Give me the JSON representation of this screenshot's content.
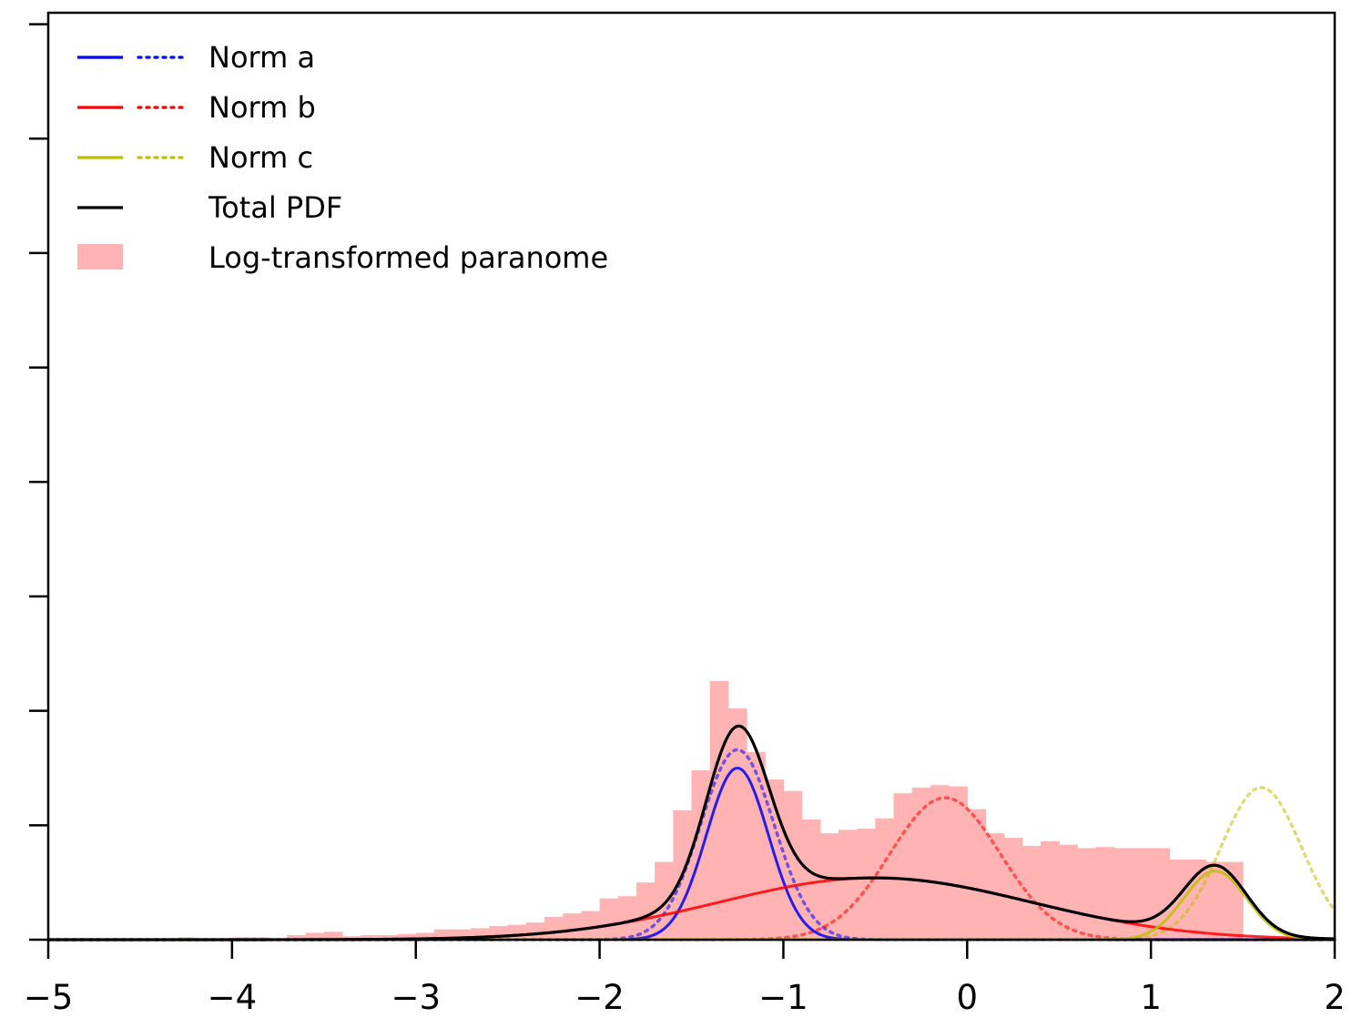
{
  "chart_data": {
    "type": "bar",
    "title": "",
    "xlabel": "",
    "ylabel": "",
    "xlim": [
      -5,
      2
    ],
    "ylim": [
      0,
      0.81
    ],
    "y_tick_labels_visible": false,
    "x_ticks": [
      -5,
      -4,
      -3,
      -2,
      -1,
      0,
      1,
      2
    ],
    "x_tick_labels": [
      "−5",
      "−4",
      "−3",
      "−2",
      "−1",
      "0",
      "1",
      "2"
    ],
    "y_ticks": [
      0,
      0.1,
      0.2,
      0.3,
      0.4,
      0.5,
      0.6,
      0.7,
      0.8
    ],
    "grid": false,
    "legend_position": "upper-left",
    "colors": {
      "norm_a": "#0000ff",
      "norm_b": "#ff0000",
      "norm_c": "#bfbf00",
      "total": "#000000",
      "histogram": "#ffb3b3"
    },
    "legend": [
      {
        "label": "Norm a",
        "color": "#0000ff",
        "style": "line+dotted"
      },
      {
        "label": "Norm b",
        "color": "#ff0000",
        "style": "line+dotted"
      },
      {
        "label": "Norm c",
        "color": "#bfbf00",
        "style": "line+dotted"
      },
      {
        "label": "Total PDF",
        "color": "#000000",
        "style": "line"
      },
      {
        "label": "Log-transformed paranome",
        "color": "#ffb3b3",
        "style": "patch"
      }
    ],
    "histogram": {
      "name": "Log-transformed paranome",
      "bin_width": 0.1,
      "bins_start": [
        -4.4,
        -4.3,
        -4.2,
        -4.1,
        -4.0,
        -3.9,
        -3.8,
        -3.7,
        -3.6,
        -3.5,
        -3.4,
        -3.3,
        -3.2,
        -3.1,
        -3.0,
        -2.9,
        -2.8,
        -2.7,
        -2.6,
        -2.5,
        -2.4,
        -2.3,
        -2.2,
        -2.1,
        -2.0,
        -1.9,
        -1.8,
        -1.7,
        -1.6,
        -1.5,
        -1.4,
        -1.3,
        -1.2,
        -1.1,
        -1.0,
        -0.9,
        -0.8,
        -0.7,
        -0.6,
        -0.5,
        -0.4,
        -0.3,
        -0.2,
        -0.1,
        0.0,
        0.1,
        0.2,
        0.3,
        0.4,
        0.5,
        0.6,
        0.7,
        0.8,
        0.9,
        1.0,
        1.1,
        1.2,
        1.3,
        1.4,
        1.5
      ],
      "values": [
        0.0,
        0.002,
        0.0,
        0.0,
        0.002,
        0.002,
        0.0,
        0.004,
        0.006,
        0.007,
        0.003,
        0.004,
        0.004,
        0.005,
        0.006,
        0.009,
        0.009,
        0.01,
        0.012,
        0.013,
        0.015,
        0.02,
        0.023,
        0.025,
        0.036,
        0.038,
        0.05,
        0.068,
        0.113,
        0.148,
        0.226,
        0.202,
        0.164,
        0.14,
        0.13,
        0.105,
        0.093,
        0.096,
        0.097,
        0.106,
        0.128,
        0.133,
        0.135,
        0.134,
        0.114,
        0.093,
        0.089,
        0.082,
        0.086,
        0.083,
        0.08,
        0.081,
        0.08,
        0.08,
        0.08,
        0.07,
        0.07,
        0.068,
        0.068,
        0.0
      ]
    },
    "components": [
      {
        "name": "Norm a",
        "mu": -1.25,
        "sigma": 0.17,
        "solid_peak": 0.15,
        "dotted_mu": -1.25,
        "dotted_sigma": 0.2,
        "dotted_peak": 0.166
      },
      {
        "name": "Norm b",
        "mu": -0.5,
        "sigma": 0.85,
        "solid_peak": 0.054,
        "dotted_mu": -0.12,
        "dotted_sigma": 0.3,
        "dotted_peak": 0.124
      },
      {
        "name": "Norm c",
        "mu": 1.35,
        "sigma": 0.17,
        "solid_peak": 0.06,
        "dotted_mu": 1.6,
        "dotted_sigma": 0.22,
        "dotted_peak": 0.133
      }
    ]
  }
}
